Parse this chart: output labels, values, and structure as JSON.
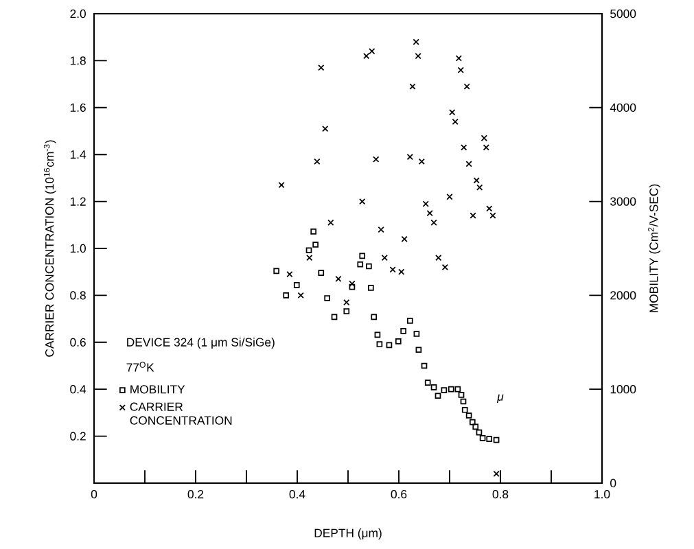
{
  "chart_data": {
    "type": "scatter",
    "xlabel": "DEPTH (μm)",
    "ylabel": "CARRIER CONCENTRATION (10$^{16}$cm$^{-3}$)",
    "y2label": "MOBILITY (Cm$^{2}$/V-SEC)",
    "xlim": [
      0,
      1
    ],
    "ylim": [
      0,
      2
    ],
    "y2lim": [
      0,
      5000
    ],
    "xticks": [
      0,
      0.2,
      0.4,
      0.6,
      0.8,
      {
        "value": 1,
        "label": "1.0"
      }
    ],
    "yticks": [
      0.2,
      0.4,
      0.6,
      0.8,
      {
        "value": 1,
        "label": "1.0"
      },
      1.2,
      1.4,
      1.6,
      1.8,
      {
        "value": 2,
        "label": "2.0"
      }
    ],
    "y2ticks": [
      0,
      1000,
      2000,
      3000,
      4000,
      5000
    ],
    "legend": "bottom left",
    "annotations": [
      "DEVICE 324 (1 μm Si/SiGe)",
      "77$^{O}$K",
      "μ"
    ],
    "series": [
      {
        "name": "MOBILITY",
        "axis": "y2",
        "marker": "square",
        "color": "#000000",
        "x": [
          0.359,
          0.378,
          0.399,
          0.423,
          0.432,
          0.436,
          0.447,
          0.459,
          0.473,
          0.497,
          0.508,
          0.524,
          0.528,
          0.541,
          0.545,
          0.551,
          0.558,
          0.562,
          0.581,
          0.599,
          0.609,
          0.622,
          0.635,
          0.639,
          0.65,
          0.657,
          0.669,
          0.677,
          0.689,
          0.703,
          0.716,
          0.723,
          0.727,
          0.73,
          0.738,
          0.745,
          0.751,
          0.758,
          0.765,
          0.778,
          0.792
        ],
        "values": [
          2260,
          2000,
          2110,
          2480,
          2680,
          2540,
          2240,
          1970,
          1770,
          1830,
          2090,
          2330,
          2420,
          2310,
          2080,
          1770,
          1580,
          1480,
          1470,
          1510,
          1620,
          1730,
          1590,
          1420,
          1250,
          1070,
          1020,
          930,
          990,
          1000,
          1000,
          940,
          870,
          780,
          720,
          650,
          600,
          540,
          480,
          470,
          460
        ]
      },
      {
        "name": "CARRIER CONCENTRATION",
        "marker": "cross",
        "color": "#000000",
        "x": [
          0.369,
          0.385,
          0.407,
          0.424,
          0.439,
          0.447,
          0.455,
          0.466,
          0.481,
          0.497,
          0.508,
          0.528,
          0.536,
          0.547,
          0.555,
          0.565,
          0.572,
          0.588,
          0.605,
          0.611,
          0.622,
          0.627,
          0.634,
          0.638,
          0.645,
          0.653,
          0.661,
          0.669,
          0.678,
          0.691,
          0.7,
          0.705,
          0.711,
          0.718,
          0.722,
          0.728,
          0.734,
          0.738,
          0.746,
          0.753,
          0.759,
          0.768,
          0.772,
          0.778,
          0.785,
          0.792
        ],
        "values": [
          1.27,
          0.89,
          0.8,
          0.96,
          1.37,
          1.77,
          1.51,
          1.11,
          0.87,
          0.77,
          0.85,
          1.2,
          1.82,
          1.84,
          1.38,
          1.08,
          0.96,
          0.91,
          0.9,
          1.04,
          1.39,
          1.69,
          1.88,
          1.82,
          1.37,
          1.19,
          1.15,
          1.11,
          0.96,
          0.92,
          1.22,
          1.58,
          1.54,
          1.81,
          1.76,
          1.43,
          1.69,
          1.36,
          1.14,
          1.29,
          1.26,
          1.47,
          1.43,
          1.17,
          1.14,
          0.04
        ]
      }
    ]
  }
}
